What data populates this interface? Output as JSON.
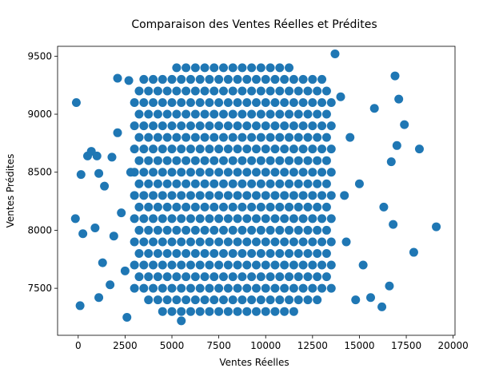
{
  "chart_data": {
    "type": "scatter",
    "title": "Comparaison des Ventes Réelles et Prédites",
    "xlabel": "Ventes Réelles",
    "ylabel": "Ventes Prédites",
    "color": "#1f77b4",
    "x": [
      4500,
      5000,
      5500,
      6000,
      6500,
      7000,
      7500,
      8000,
      8500,
      9000,
      9500,
      10000,
      10500,
      11000,
      11500,
      3750,
      4250,
      4750,
      5250,
      5750,
      6250,
      6750,
      7250,
      7750,
      8250,
      8750,
      9250,
      9750,
      10250,
      10750,
      11250,
      11750,
      12250,
      12750,
      3000,
      3500,
      4000,
      4500,
      5000,
      5500,
      6000,
      6500,
      7000,
      7500,
      8000,
      8500,
      9000,
      9500,
      10000,
      10500,
      11000,
      11500,
      12000,
      12500,
      13000,
      13500,
      3250,
      3750,
      4250,
      4750,
      5250,
      5750,
      6250,
      6750,
      7250,
      7750,
      8250,
      8750,
      9250,
      9750,
      10250,
      10750,
      11250,
      11750,
      12250,
      12750,
      13250,
      3000,
      3500,
      4000,
      4500,
      5000,
      5500,
      6000,
      6500,
      7000,
      7500,
      8000,
      8500,
      9000,
      9500,
      10000,
      10500,
      11000,
      11500,
      12000,
      12500,
      13000,
      13500,
      3250,
      3750,
      4250,
      4750,
      5250,
      5750,
      6250,
      6750,
      7250,
      7750,
      8250,
      8750,
      9250,
      9750,
      10250,
      10750,
      11250,
      11750,
      12250,
      12750,
      13250,
      3000,
      3500,
      4000,
      4500,
      5000,
      5500,
      6000,
      6500,
      7000,
      7500,
      8000,
      8500,
      9000,
      9500,
      10000,
      10500,
      11000,
      11500,
      12000,
      12500,
      13000,
      13500,
      3250,
      3750,
      4250,
      4750,
      5250,
      5750,
      6250,
      6750,
      7250,
      7750,
      8250,
      8750,
      9250,
      9750,
      10250,
      10750,
      11250,
      11750,
      12250,
      12750,
      13250,
      3000,
      3500,
      4000,
      4500,
      5000,
      5500,
      6000,
      6500,
      7000,
      7500,
      8000,
      8500,
      9000,
      9500,
      10000,
      10500,
      11000,
      11500,
      12000,
      12500,
      13000,
      13500,
      3250,
      3750,
      4250,
      4750,
      5250,
      5750,
      6250,
      6750,
      7250,
      7750,
      8250,
      8750,
      9250,
      9750,
      10250,
      10750,
      11250,
      11750,
      12250,
      12750,
      13250,
      3000,
      3500,
      4000,
      4500,
      5000,
      5500,
      6000,
      6500,
      7000,
      7500,
      8000,
      8500,
      9000,
      9500,
      10000,
      10500,
      11000,
      11500,
      12000,
      12500,
      13000,
      13500,
      3250,
      3750,
      4250,
      4750,
      5250,
      5750,
      6250,
      6750,
      7250,
      7750,
      8250,
      8750,
      9250,
      9750,
      10250,
      10750,
      11250,
      11750,
      12250,
      12750,
      13250,
      3000,
      3500,
      4000,
      4500,
      5000,
      5500,
      6000,
      6500,
      7000,
      7500,
      8000,
      8500,
      9000,
      9500,
      10000,
      10500,
      11000,
      11500,
      12000,
      12500,
      13000,
      13500,
      3250,
      3750,
      4250,
      4750,
      5250,
      5750,
      6250,
      6750,
      7250,
      7750,
      8250,
      8750,
      9250,
      9750,
      10250,
      10750,
      11250,
      11750,
      12250,
      12750,
      13250,
      3000,
      3500,
      4000,
      4500,
      5000,
      5500,
      6000,
      6500,
      7000,
      7500,
      8000,
      8500,
      9000,
      9500,
      10000,
      10500,
      11000,
      11500,
      12000,
      12500,
      13000,
      13500,
      3250,
      3750,
      4250,
      4750,
      5250,
      5750,
      6250,
      6750,
      7250,
      7750,
      8250,
      8750,
      9250,
      9750,
      10250,
      10750,
      11250,
      11750,
      12250,
      12750,
      13250,
      3000,
      3500,
      4000,
      4500,
      5000,
      5500,
      6000,
      6500,
      7000,
      7500,
      8000,
      8500,
      9000,
      9500,
      10000,
      10500,
      11000,
      11500,
      12000,
      12500,
      13000,
      13500,
      3250,
      3750,
      4250,
      4750,
      5250,
      5750,
      6250,
      6750,
      7250,
      7750,
      8250,
      8750,
      9250,
      9750,
      10250,
      10750,
      11250,
      11750,
      12250,
      12750,
      13250,
      3000,
      3500,
      4000,
      4500,
      5000,
      5500,
      6000,
      6500,
      7000,
      7500,
      8000,
      8500,
      9000,
      9500,
      10000,
      10500,
      11000,
      11500,
      12000,
      12500,
      13000,
      13500,
      3250,
      3750,
      4250,
      4750,
      5250,
      5750,
      6250,
      6750,
      7250,
      7750,
      8250,
      8750,
      9250,
      9750,
      10250,
      10750,
      11250,
      11750,
      12250,
      12750,
      13250,
      3500,
      4000,
      4500,
      5000,
      5500,
      6000,
      6500,
      7000,
      7500,
      8000,
      8500,
      9000,
      9500,
      10000,
      10500,
      11000,
      11500,
      12000,
      12500,
      13000,
      5250,
      5750,
      6250,
      6750,
      7250,
      7750,
      8250,
      8750,
      9250,
      9750,
      10250,
      10750,
      11250,
      -100,
      -150,
      100,
      150,
      250,
      500,
      700,
      1000,
      1100,
      1100,
      900,
      1800,
      1400,
      1300,
      1700,
      2100,
      2700,
      2100,
      2300,
      1900,
      2500,
      2600,
      5500,
      14000,
      14500,
      15000,
      14300,
      15200,
      14800,
      13700,
      15600,
      16200,
      16600,
      16900,
      17100,
      17400,
      18200,
      19100,
      17900,
      16800,
      16700,
      17000,
      15800,
      16300,
      2800,
      14200
    ],
    "values": [
      7300,
      7300,
      7300,
      7300,
      7300,
      7300,
      7300,
      7300,
      7300,
      7300,
      7300,
      7300,
      7300,
      7300,
      7300,
      7400,
      7400,
      7400,
      7400,
      7400,
      7400,
      7400,
      7400,
      7400,
      7400,
      7400,
      7400,
      7400,
      7400,
      7400,
      7400,
      7400,
      7400,
      7400,
      7500,
      7500,
      7500,
      7500,
      7500,
      7500,
      7500,
      7500,
      7500,
      7500,
      7500,
      7500,
      7500,
      7500,
      7500,
      7500,
      7500,
      7500,
      7500,
      7500,
      7500,
      7500,
      7600,
      7600,
      7600,
      7600,
      7600,
      7600,
      7600,
      7600,
      7600,
      7600,
      7600,
      7600,
      7600,
      7600,
      7600,
      7600,
      7600,
      7600,
      7600,
      7600,
      7600,
      7700,
      7700,
      7700,
      7700,
      7700,
      7700,
      7700,
      7700,
      7700,
      7700,
      7700,
      7700,
      7700,
      7700,
      7700,
      7700,
      7700,
      7700,
      7700,
      7700,
      7700,
      7700,
      7800,
      7800,
      7800,
      7800,
      7800,
      7800,
      7800,
      7800,
      7800,
      7800,
      7800,
      7800,
      7800,
      7800,
      7800,
      7800,
      7800,
      7800,
      7800,
      7800,
      7800,
      7900,
      7900,
      7900,
      7900,
      7900,
      7900,
      7900,
      7900,
      7900,
      7900,
      7900,
      7900,
      7900,
      7900,
      7900,
      7900,
      7900,
      7900,
      7900,
      7900,
      7900,
      7900,
      8000,
      8000,
      8000,
      8000,
      8000,
      8000,
      8000,
      8000,
      8000,
      8000,
      8000,
      8000,
      8000,
      8000,
      8000,
      8000,
      8000,
      8000,
      8000,
      8000,
      8000,
      8100,
      8100,
      8100,
      8100,
      8100,
      8100,
      8100,
      8100,
      8100,
      8100,
      8100,
      8100,
      8100,
      8100,
      8100,
      8100,
      8100,
      8100,
      8100,
      8100,
      8100,
      8100,
      8200,
      8200,
      8200,
      8200,
      8200,
      8200,
      8200,
      8200,
      8200,
      8200,
      8200,
      8200,
      8200,
      8200,
      8200,
      8200,
      8200,
      8200,
      8200,
      8200,
      8200,
      8300,
      8300,
      8300,
      8300,
      8300,
      8300,
      8300,
      8300,
      8300,
      8300,
      8300,
      8300,
      8300,
      8300,
      8300,
      8300,
      8300,
      8300,
      8300,
      8300,
      8300,
      8300,
      8400,
      8400,
      8400,
      8400,
      8400,
      8400,
      8400,
      8400,
      8400,
      8400,
      8400,
      8400,
      8400,
      8400,
      8400,
      8400,
      8400,
      8400,
      8400,
      8400,
      8400,
      8500,
      8500,
      8500,
      8500,
      8500,
      8500,
      8500,
      8500,
      8500,
      8500,
      8500,
      8500,
      8500,
      8500,
      8500,
      8500,
      8500,
      8500,
      8500,
      8500,
      8500,
      8500,
      8600,
      8600,
      8600,
      8600,
      8600,
      8600,
      8600,
      8600,
      8600,
      8600,
      8600,
      8600,
      8600,
      8600,
      8600,
      8600,
      8600,
      8600,
      8600,
      8600,
      8600,
      8700,
      8700,
      8700,
      8700,
      8700,
      8700,
      8700,
      8700,
      8700,
      8700,
      8700,
      8700,
      8700,
      8700,
      8700,
      8700,
      8700,
      8700,
      8700,
      8700,
      8700,
      8700,
      8800,
      8800,
      8800,
      8800,
      8800,
      8800,
      8800,
      8800,
      8800,
      8800,
      8800,
      8800,
      8800,
      8800,
      8800,
      8800,
      8800,
      8800,
      8800,
      8800,
      8800,
      8900,
      8900,
      8900,
      8900,
      8900,
      8900,
      8900,
      8900,
      8900,
      8900,
      8900,
      8900,
      8900,
      8900,
      8900,
      8900,
      8900,
      8900,
      8900,
      8900,
      8900,
      8900,
      9000,
      9000,
      9000,
      9000,
      9000,
      9000,
      9000,
      9000,
      9000,
      9000,
      9000,
      9000,
      9000,
      9000,
      9000,
      9000,
      9000,
      9000,
      9000,
      9000,
      9000,
      9100,
      9100,
      9100,
      9100,
      9100,
      9100,
      9100,
      9100,
      9100,
      9100,
      9100,
      9100,
      9100,
      9100,
      9100,
      9100,
      9100,
      9100,
      9100,
      9100,
      9100,
      9100,
      9200,
      9200,
      9200,
      9200,
      9200,
      9200,
      9200,
      9200,
      9200,
      9200,
      9200,
      9200,
      9200,
      9200,
      9200,
      9200,
      9200,
      9200,
      9200,
      9200,
      9200,
      9300,
      9300,
      9300,
      9300,
      9300,
      9300,
      9300,
      9300,
      9300,
      9300,
      9300,
      9300,
      9300,
      9300,
      9300,
      9300,
      9300,
      9300,
      9300,
      9300,
      9400,
      9400,
      9400,
      9400,
      9400,
      9400,
      9400,
      9400,
      9400,
      9400,
      9400,
      9400,
      9400,
      9100,
      8100,
      7350,
      8480,
      7970,
      8640,
      8680,
      8640,
      8490,
      7420,
      8020,
      8630,
      8380,
      7720,
      7530,
      9310,
      9290,
      8840,
      8150,
      7950,
      7650,
      7250,
      7220,
      9150,
      8800,
      8400,
      7900,
      7700,
      7400,
      9520,
      7420,
      7340,
      7520,
      9330,
      9130,
      8910,
      8700,
      8030,
      7810,
      8050,
      8590,
      8730,
      9050,
      8200,
      8500,
      8300
    ],
    "xlim": [
      -1100,
      20100
    ],
    "ylim": [
      7095,
      9585
    ],
    "xticks": [
      0,
      2500,
      5000,
      7500,
      10000,
      12500,
      15000,
      17500,
      20000
    ],
    "yticks": [
      7500,
      8000,
      8500,
      9000,
      9500
    ]
  }
}
